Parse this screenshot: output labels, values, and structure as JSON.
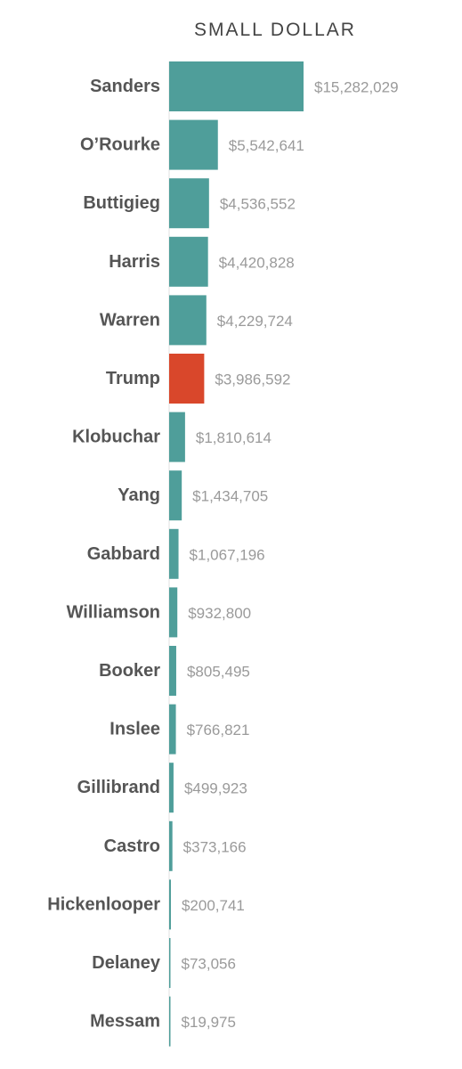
{
  "chart_data": {
    "type": "bar",
    "orientation": "horizontal",
    "title": "SMALL DOLLAR",
    "categories": [
      "Sanders",
      "O’Rourke",
      "Buttigieg",
      "Harris",
      "Warren",
      "Trump",
      "Klobuchar",
      "Yang",
      "Gabbard",
      "Williamson",
      "Booker",
      "Inslee",
      "Gillibrand",
      "Castro",
      "Hickenlooper",
      "Delaney",
      "Messam"
    ],
    "values": [
      15282029,
      5542641,
      4536552,
      4420828,
      4229724,
      3986592,
      1810614,
      1434705,
      1067196,
      932800,
      805495,
      766821,
      499923,
      373166,
      200741,
      73056,
      19975
    ],
    "value_labels": [
      "$15,282,029",
      "$5,542,641",
      "$4,536,552",
      "$4,420,828",
      "$4,229,724",
      "$3,986,592",
      "$1,810,614",
      "$1,434,705",
      "$1,067,196",
      "$932,800",
      "$805,495",
      "$766,821",
      "$499,923",
      "$373,166",
      "$200,741",
      "$73,056",
      "$19,975"
    ],
    "colors": {
      "default": "#4f9e9a",
      "highlight": "#d9472b",
      "axis": "#e2e2e2"
    },
    "highlight_category": "Trump",
    "xlim": [
      0,
      15282029
    ],
    "grid": false,
    "legend": "none"
  }
}
